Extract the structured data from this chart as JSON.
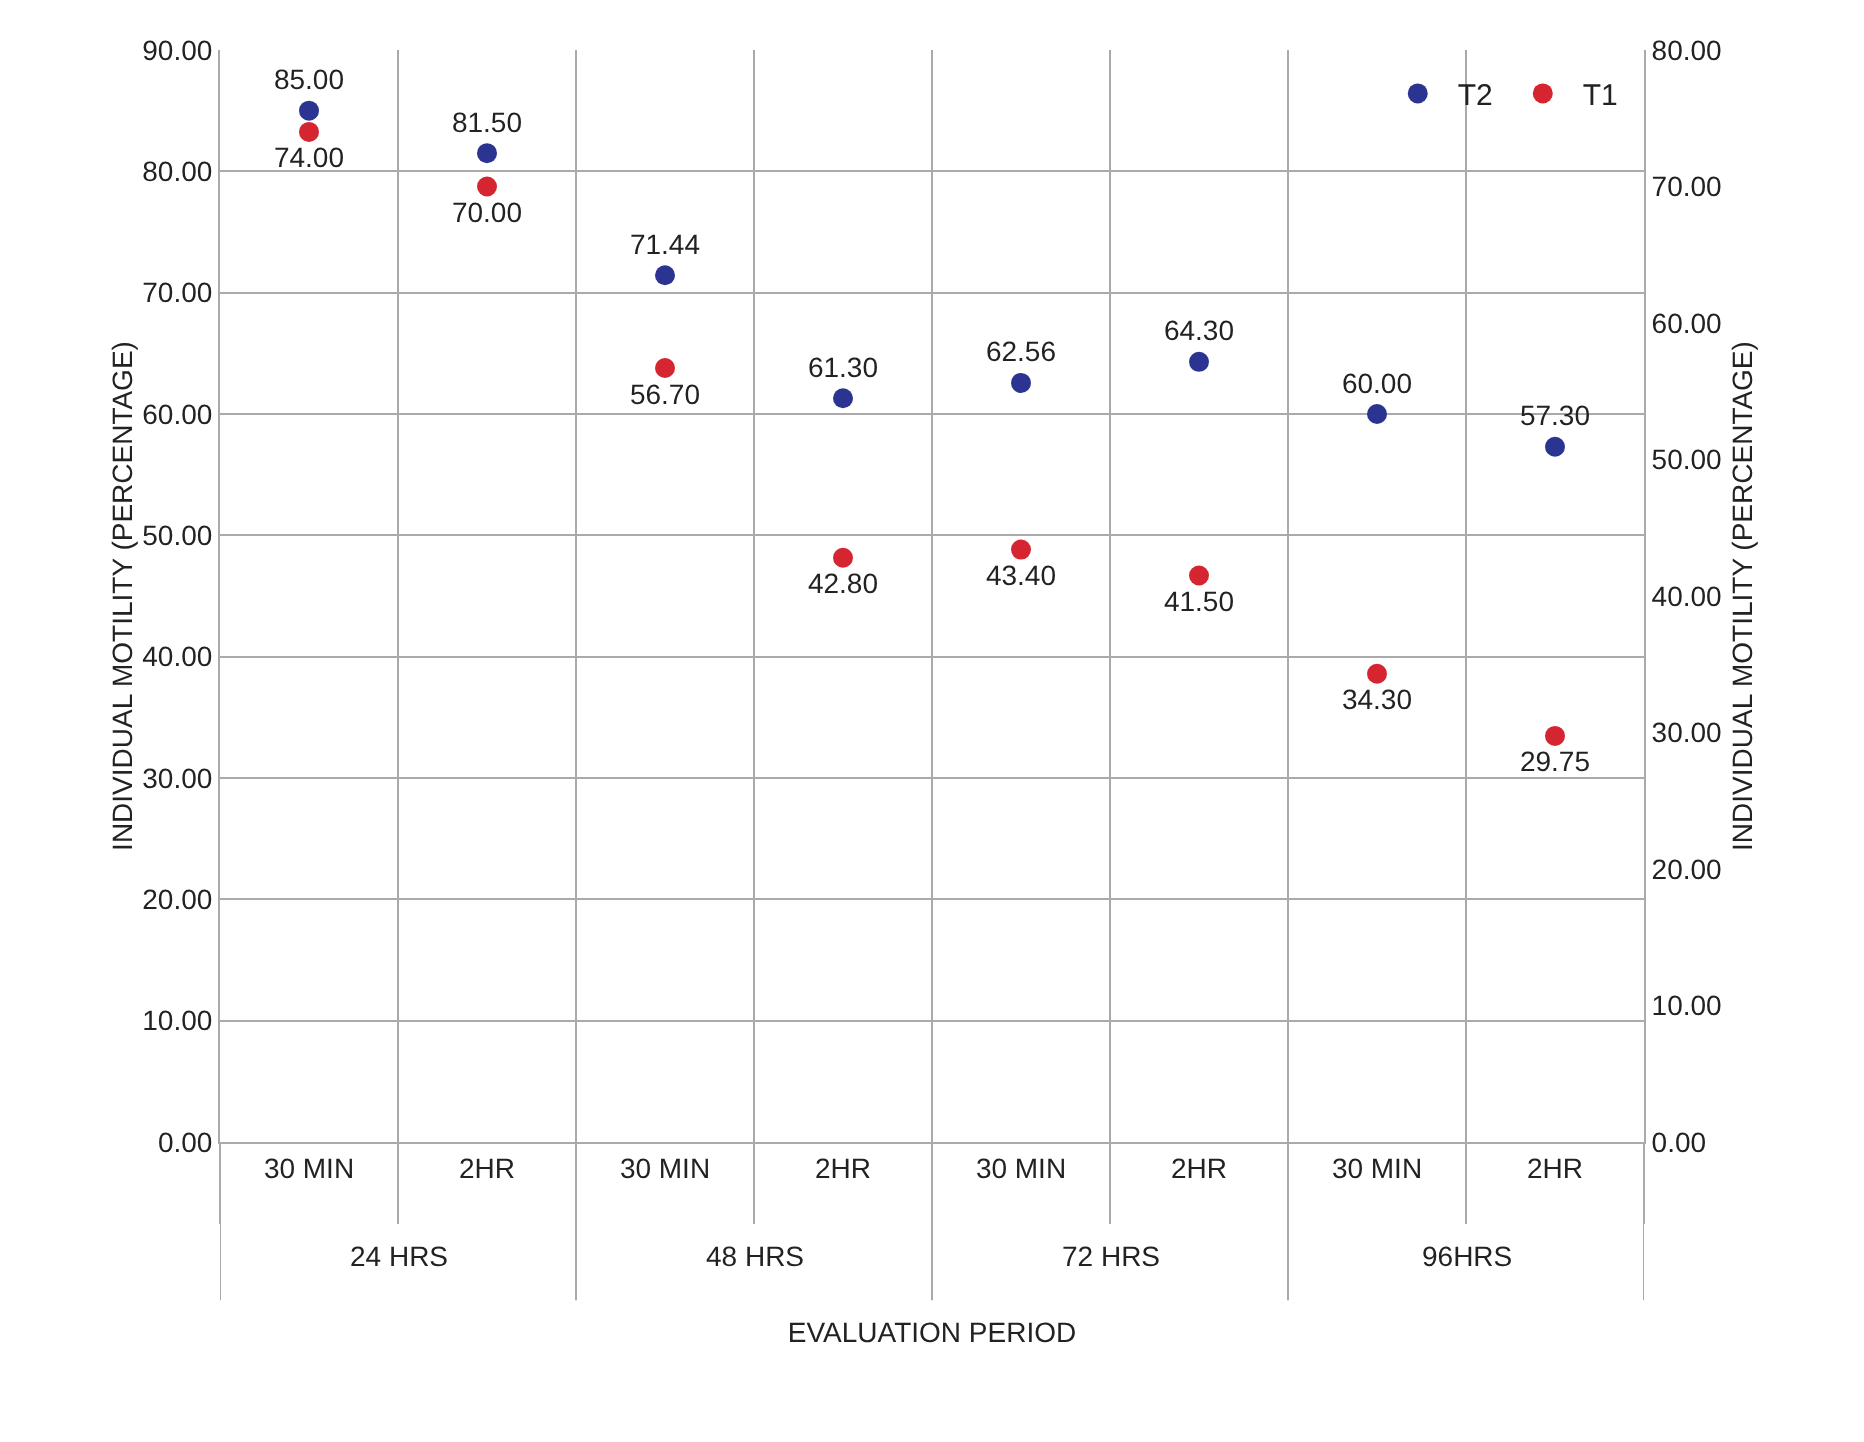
{
  "chart_data": {
    "type": "scatter",
    "categories": [
      "30 MIN",
      "2HR",
      "30 MIN",
      "2HR",
      "30 MIN",
      "2HR",
      "30 MIN",
      "2HR"
    ],
    "series": [
      {
        "name": "T2",
        "color": "#2b3591",
        "values": [
          85.0,
          81.5,
          71.44,
          61.3,
          62.56,
          64.3,
          60.0,
          57.3
        ],
        "value_labels": [
          "85.00",
          "81.50",
          "71.44",
          "61.30",
          "62.56",
          "64.30",
          "60.00",
          "57.30"
        ]
      },
      {
        "name": "T1",
        "color": "#d42530",
        "axis": "y2",
        "values": [
          74.0,
          70.0,
          56.7,
          42.8,
          43.4,
          41.5,
          34.3,
          29.75
        ],
        "value_labels": [
          "74.00",
          "70.00",
          "56.70",
          "42.80",
          "43.40",
          "41.50",
          "34.30",
          "29.75"
        ]
      }
    ],
    "xlabel": "EVALUATION PERIOD",
    "ylabel": "INDIVIDUAL MOTILITY (PERCENTAGE)",
    "y2label": "INDIVIDUAL MOTILITY (PERCENTAGE)",
    "annotations": [
      "24 HRS",
      "48 HRS",
      "72 HRS",
      "96HRS"
    ],
    "ylim": [
      0,
      90
    ],
    "yticks": [
      {
        "value": 0,
        "label": "0.00"
      },
      {
        "value": 10,
        "label": "10.00"
      },
      {
        "value": 20,
        "label": "20.00"
      },
      {
        "value": 30,
        "label": "30.00"
      },
      {
        "value": 40,
        "label": "40.00"
      },
      {
        "value": 50,
        "label": "50.00"
      },
      {
        "value": 60,
        "label": "60.00"
      },
      {
        "value": 70,
        "label": "70.00"
      },
      {
        "value": 80,
        "label": "80.00"
      },
      {
        "value": 90,
        "label": "90.00"
      }
    ],
    "y2lim": [
      0,
      80
    ],
    "y2ticks": [
      {
        "value": 0,
        "label": "0.00"
      },
      {
        "value": 10,
        "label": "10.00"
      },
      {
        "value": 20,
        "label": "20.00"
      },
      {
        "value": 30,
        "label": "30.00"
      },
      {
        "value": 40,
        "label": "40.00"
      },
      {
        "value": 50,
        "label": "50.00"
      },
      {
        "value": 60,
        "label": "60.00"
      },
      {
        "value": 70,
        "label": "70.00"
      },
      {
        "value": 80,
        "label": "80.00"
      }
    ],
    "grid": true,
    "legend": "top right",
    "marker": "circle"
  }
}
